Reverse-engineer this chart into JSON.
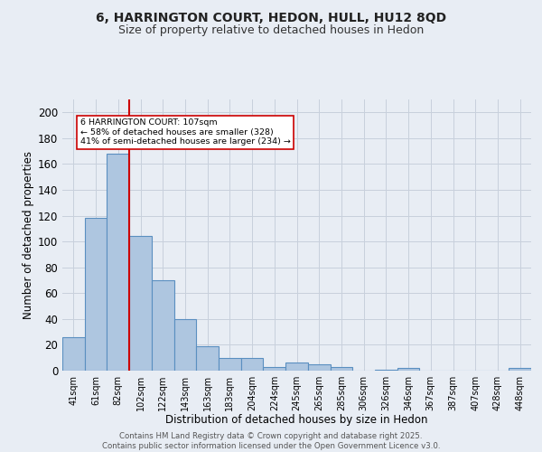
{
  "title1": "6, HARRINGTON COURT, HEDON, HULL, HU12 8QD",
  "title2": "Size of property relative to detached houses in Hedon",
  "xlabel": "Distribution of detached houses by size in Hedon",
  "ylabel": "Number of detached properties",
  "categories": [
    "41sqm",
    "61sqm",
    "82sqm",
    "102sqm",
    "122sqm",
    "143sqm",
    "163sqm",
    "183sqm",
    "204sqm",
    "224sqm",
    "245sqm",
    "265sqm",
    "285sqm",
    "306sqm",
    "326sqm",
    "346sqm",
    "367sqm",
    "387sqm",
    "407sqm",
    "428sqm",
    "448sqm"
  ],
  "values": [
    26,
    118,
    168,
    104,
    70,
    40,
    19,
    10,
    10,
    3,
    6,
    5,
    3,
    0,
    1,
    2,
    0,
    0,
    0,
    0,
    2
  ],
  "bar_color": "#aec6e0",
  "bar_edge_color": "#5a8fc0",
  "grid_color": "#c8d0dc",
  "bg_color": "#e8edf4",
  "vline_after_index": 2,
  "vline_color": "#cc0000",
  "annotation_text": "6 HARRINGTON COURT: 107sqm\n← 58% of detached houses are smaller (328)\n41% of semi-detached houses are larger (234) →",
  "annotation_box_facecolor": "#ffffff",
  "annotation_box_edgecolor": "#cc0000",
  "footer1": "Contains HM Land Registry data © Crown copyright and database right 2025.",
  "footer2": "Contains public sector information licensed under the Open Government Licence v3.0.",
  "ylim": [
    0,
    210
  ],
  "yticks": [
    0,
    20,
    40,
    60,
    80,
    100,
    120,
    140,
    160,
    180,
    200
  ]
}
